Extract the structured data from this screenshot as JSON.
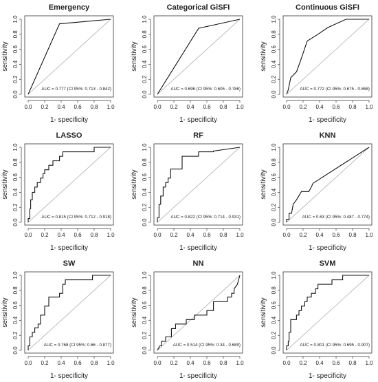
{
  "chart_data": [
    {
      "type": "line",
      "title": "Emergency",
      "xlabel": "1- specificity",
      "ylabel": "sensitivity",
      "xlim": [
        0,
        1
      ],
      "ylim": [
        0,
        1
      ],
      "x_ticks": [
        "0.0",
        "0.2",
        "0.4",
        "0.6",
        "0.8",
        "1.0"
      ],
      "y_ticks": [
        "0.0",
        "0.2",
        "0.4",
        "0.6",
        "0.8",
        "1.0"
      ],
      "annotation": "AUC = 0.777 (CI 95%: 0.713 - 0.842)",
      "reference_line": [
        [
          0,
          0
        ],
        [
          1,
          1
        ]
      ],
      "points": [
        [
          0,
          0
        ],
        [
          0.38,
          0.94
        ],
        [
          1,
          1
        ]
      ]
    },
    {
      "type": "line",
      "title": "Categorical GiSFI",
      "xlabel": "1- specificity",
      "ylabel": "sensitivity",
      "xlim": [
        0,
        1
      ],
      "ylim": [
        0,
        1
      ],
      "x_ticks": [
        "0.0",
        "0.2",
        "0.4",
        "0.6",
        "0.8",
        "1.0"
      ],
      "y_ticks": [
        "0.0",
        "0.2",
        "0.4",
        "0.6",
        "0.8",
        "1.0"
      ],
      "annotation": "AUC = 0.696 (CI 95%: 0.605 - 0.786)",
      "reference_line": [
        [
          0,
          0
        ],
        [
          1,
          1
        ]
      ],
      "points": [
        [
          0,
          0
        ],
        [
          0.5,
          0.88
        ],
        [
          1,
          1
        ]
      ]
    },
    {
      "type": "line",
      "title": "Continuous GiSFI",
      "xlabel": "1- specificity",
      "ylabel": "sensitivity",
      "xlim": [
        0,
        1
      ],
      "ylim": [
        0,
        1
      ],
      "x_ticks": [
        "0.0",
        "0.2",
        "0.4",
        "0.6",
        "0.8",
        "1.0"
      ],
      "y_ticks": [
        "0.0",
        "0.2",
        "0.4",
        "0.6",
        "0.8",
        "1.0"
      ],
      "annotation": "AUC = 0.772 (CI 95%: 0.675 - 0.868)",
      "reference_line": [
        [
          0,
          0
        ],
        [
          1,
          1
        ]
      ],
      "points": [
        [
          0,
          0
        ],
        [
          0.02,
          0.06
        ],
        [
          0.05,
          0.22
        ],
        [
          0.12,
          0.3
        ],
        [
          0.17,
          0.45
        ],
        [
          0.25,
          0.71
        ],
        [
          0.38,
          0.8
        ],
        [
          0.5,
          0.89
        ],
        [
          0.72,
          1.0
        ],
        [
          1,
          1
        ]
      ]
    },
    {
      "type": "line",
      "title": "LASSO",
      "xlabel": "1- specificity",
      "ylabel": "sensitivity",
      "xlim": [
        0,
        1
      ],
      "ylim": [
        0,
        1
      ],
      "x_ticks": [
        "0.0",
        "0.2",
        "0.4",
        "0.6",
        "0.8",
        "1.0"
      ],
      "y_ticks": [
        "0.0",
        "0.2",
        "0.4",
        "0.6",
        "0.8",
        "1.0"
      ],
      "annotation": "AUC = 0.815 (CI 95%: 0.712 - 0.918)",
      "reference_line": [
        [
          0,
          0
        ],
        [
          1,
          1
        ]
      ],
      "points": [
        [
          0,
          0
        ],
        [
          0,
          0.05
        ],
        [
          0.02,
          0.05
        ],
        [
          0.02,
          0.18
        ],
        [
          0.03,
          0.18
        ],
        [
          0.03,
          0.3
        ],
        [
          0.05,
          0.3
        ],
        [
          0.05,
          0.4
        ],
        [
          0.08,
          0.4
        ],
        [
          0.08,
          0.47
        ],
        [
          0.11,
          0.47
        ],
        [
          0.11,
          0.53
        ],
        [
          0.15,
          0.53
        ],
        [
          0.15,
          0.59
        ],
        [
          0.18,
          0.59
        ],
        [
          0.18,
          0.65
        ],
        [
          0.2,
          0.65
        ],
        [
          0.2,
          0.7
        ],
        [
          0.25,
          0.7
        ],
        [
          0.25,
          0.76
        ],
        [
          0.3,
          0.76
        ],
        [
          0.3,
          0.82
        ],
        [
          0.38,
          0.82
        ],
        [
          0.38,
          0.88
        ],
        [
          0.42,
          0.88
        ],
        [
          0.42,
          0.94
        ],
        [
          0.8,
          0.94
        ],
        [
          0.8,
          1.0
        ],
        [
          1,
          1
        ]
      ]
    },
    {
      "type": "line",
      "title": "RF",
      "xlabel": "1- specificity",
      "ylabel": "sensitivity",
      "xlim": [
        0,
        1
      ],
      "ylim": [
        0,
        1
      ],
      "x_ticks": [
        "0.0",
        "0.2",
        "0.4",
        "0.6",
        "0.8",
        "1.0"
      ],
      "y_ticks": [
        "0.0",
        "0.2",
        "0.4",
        "0.6",
        "0.8",
        "1.0"
      ],
      "annotation": "AUC = 0.822 (CI 95%: 0.714 - 0.931)",
      "reference_line": [
        [
          0,
          0
        ],
        [
          1,
          1
        ]
      ],
      "points": [
        [
          0,
          0
        ],
        [
          0,
          0.06
        ],
        [
          0.02,
          0.06
        ],
        [
          0.02,
          0.24
        ],
        [
          0.04,
          0.24
        ],
        [
          0.04,
          0.35
        ],
        [
          0.07,
          0.35
        ],
        [
          0.07,
          0.47
        ],
        [
          0.1,
          0.47
        ],
        [
          0.1,
          0.53
        ],
        [
          0.13,
          0.53
        ],
        [
          0.13,
          0.59
        ],
        [
          0.16,
          0.59
        ],
        [
          0.16,
          0.71
        ],
        [
          0.3,
          0.71
        ],
        [
          0.3,
          0.88
        ],
        [
          0.5,
          0.88
        ],
        [
          0.5,
          0.94
        ],
        [
          0.68,
          0.94
        ],
        [
          0.68,
          0.95
        ],
        [
          1,
          1
        ]
      ]
    },
    {
      "type": "line",
      "title": "KNN",
      "xlabel": "1- specificity",
      "ylabel": "sensitivity",
      "xlim": [
        0,
        1
      ],
      "ylim": [
        0,
        1
      ],
      "x_ticks": [
        "0.0",
        "0.2",
        "0.4",
        "0.6",
        "0.8",
        "1.0"
      ],
      "y_ticks": [
        "0.0",
        "0.2",
        "0.4",
        "0.6",
        "0.8",
        "1.0"
      ],
      "annotation": "AUC = 0.63 (CI 95%: 0.487 - 0.774)",
      "reference_line": [
        [
          0,
          0
        ],
        [
          1,
          1
        ]
      ],
      "points": [
        [
          0,
          0
        ],
        [
          0,
          0.04
        ],
        [
          0.03,
          0.04
        ],
        [
          0.03,
          0.12
        ],
        [
          0.06,
          0.12
        ],
        [
          0.08,
          0.24
        ],
        [
          0.12,
          0.3
        ],
        [
          0.18,
          0.41
        ],
        [
          0.27,
          0.41
        ],
        [
          0.3,
          0.47
        ],
        [
          0.32,
          0.52
        ],
        [
          1,
          1
        ]
      ]
    },
    {
      "type": "line",
      "title": "SW",
      "xlabel": "1- specificity",
      "ylabel": "sensitivity",
      "xlim": [
        0,
        1
      ],
      "ylim": [
        0,
        1
      ],
      "x_ticks": [
        "0.0",
        "0.2",
        "0.4",
        "0.6",
        "0.8",
        "1.0"
      ],
      "y_ticks": [
        "0.0",
        "0.2",
        "0.4",
        "0.6",
        "0.8",
        "1.0"
      ],
      "annotation": "AUC = 0.768 (CI 95%: 0.66 - 0.877)",
      "reference_line": [
        [
          0,
          0
        ],
        [
          1,
          1
        ]
      ],
      "points": [
        [
          0,
          0
        ],
        [
          0,
          0.06
        ],
        [
          0.02,
          0.06
        ],
        [
          0.02,
          0.18
        ],
        [
          0.05,
          0.18
        ],
        [
          0.05,
          0.24
        ],
        [
          0.08,
          0.24
        ],
        [
          0.08,
          0.3
        ],
        [
          0.12,
          0.3
        ],
        [
          0.12,
          0.35
        ],
        [
          0.15,
          0.35
        ],
        [
          0.15,
          0.47
        ],
        [
          0.2,
          0.47
        ],
        [
          0.2,
          0.59
        ],
        [
          0.25,
          0.59
        ],
        [
          0.25,
          0.71
        ],
        [
          0.38,
          0.71
        ],
        [
          0.38,
          0.76
        ],
        [
          0.42,
          0.76
        ],
        [
          0.42,
          0.88
        ],
        [
          0.45,
          0.88
        ],
        [
          0.45,
          0.94
        ],
        [
          0.78,
          0.94
        ],
        [
          0.78,
          1.0
        ],
        [
          1,
          1
        ]
      ]
    },
    {
      "type": "line",
      "title": "NN",
      "xlabel": "1- specificity",
      "ylabel": "sensitivity",
      "xlim": [
        0,
        1
      ],
      "ylim": [
        0,
        1
      ],
      "x_ticks": [
        "0.0",
        "0.2",
        "0.4",
        "0.6",
        "0.8",
        "1.0"
      ],
      "y_ticks": [
        "0.0",
        "0.2",
        "0.4",
        "0.6",
        "0.8",
        "1.0"
      ],
      "annotation": "AUC = 0.514 (CI 95%: 0.34 - 0.689)",
      "reference_line": [
        [
          0,
          0
        ],
        [
          1,
          1
        ]
      ],
      "points": [
        [
          0,
          0
        ],
        [
          0.03,
          0.06
        ],
        [
          0.05,
          0.06
        ],
        [
          0.05,
          0.12
        ],
        [
          0.1,
          0.12
        ],
        [
          0.1,
          0.18
        ],
        [
          0.17,
          0.18
        ],
        [
          0.17,
          0.29
        ],
        [
          0.22,
          0.29
        ],
        [
          0.22,
          0.35
        ],
        [
          0.35,
          0.35
        ],
        [
          0.35,
          0.41
        ],
        [
          0.45,
          0.41
        ],
        [
          0.45,
          0.47
        ],
        [
          0.6,
          0.47
        ],
        [
          0.6,
          0.53
        ],
        [
          0.68,
          0.53
        ],
        [
          0.68,
          0.65
        ],
        [
          0.85,
          0.65
        ],
        [
          0.85,
          0.71
        ],
        [
          0.9,
          0.71
        ],
        [
          0.9,
          0.76
        ],
        [
          0.93,
          0.76
        ],
        [
          0.93,
          0.82
        ],
        [
          0.97,
          0.88
        ],
        [
          1,
          1
        ]
      ]
    },
    {
      "type": "line",
      "title": "SVM",
      "xlabel": "1- specificity",
      "ylabel": "sensitivity",
      "xlim": [
        0,
        1
      ],
      "ylim": [
        0,
        1
      ],
      "x_ticks": [
        "0.0",
        "0.2",
        "0.4",
        "0.6",
        "0.8",
        "1.0"
      ],
      "y_ticks": [
        "0.0",
        "0.2",
        "0.4",
        "0.6",
        "0.8",
        "1.0"
      ],
      "annotation": "AUC = 0.801 (CI 95%: 0.695 - 0.907)",
      "reference_line": [
        [
          0,
          0
        ],
        [
          1,
          1
        ]
      ],
      "points": [
        [
          0,
          0
        ],
        [
          0,
          0.06
        ],
        [
          0.02,
          0.06
        ],
        [
          0.02,
          0.12
        ],
        [
          0.03,
          0.12
        ],
        [
          0.03,
          0.24
        ],
        [
          0.05,
          0.24
        ],
        [
          0.05,
          0.41
        ],
        [
          0.12,
          0.41
        ],
        [
          0.12,
          0.47
        ],
        [
          0.15,
          0.47
        ],
        [
          0.15,
          0.53
        ],
        [
          0.18,
          0.53
        ],
        [
          0.18,
          0.59
        ],
        [
          0.22,
          0.59
        ],
        [
          0.22,
          0.65
        ],
        [
          0.25,
          0.65
        ],
        [
          0.25,
          0.71
        ],
        [
          0.3,
          0.71
        ],
        [
          0.3,
          0.76
        ],
        [
          0.35,
          0.76
        ],
        [
          0.35,
          0.82
        ],
        [
          0.38,
          0.82
        ],
        [
          0.38,
          0.88
        ],
        [
          0.55,
          0.88
        ],
        [
          0.55,
          0.94
        ],
        [
          0.68,
          0.94
        ],
        [
          0.68,
          1.0
        ],
        [
          1,
          1
        ]
      ]
    }
  ]
}
